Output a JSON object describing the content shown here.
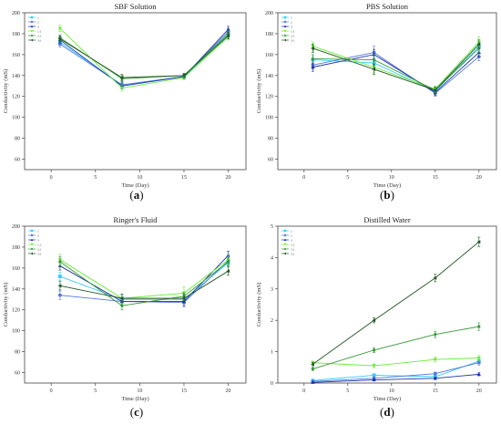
{
  "chart_data": [
    {
      "type": "line",
      "title": "SBF Solution",
      "xlabel": "Time (Day)",
      "ylabel": "Conductivity (mS)",
      "caption": "a",
      "xlim": [
        -3,
        22
      ],
      "ylim": [
        50,
        200
      ],
      "xticks": [
        0,
        5,
        10,
        15,
        20
      ],
      "yticks": [
        60,
        80,
        100,
        120,
        140,
        160,
        180,
        200
      ],
      "x": [
        1,
        8,
        15,
        20
      ],
      "legend_position": "top-left",
      "series": [
        {
          "name": "1",
          "color": "#33ccff",
          "marker": "square",
          "values": [
            172,
            131,
            139,
            179
          ],
          "err": [
            3,
            3,
            2,
            3
          ]
        },
        {
          "name": "2",
          "color": "#5577dd",
          "marker": "circle",
          "values": [
            170,
            131,
            139,
            182
          ],
          "err": [
            3,
            3,
            2,
            3
          ]
        },
        {
          "name": "3",
          "color": "#1a33aa",
          "marker": "triangle",
          "values": [
            174,
            130,
            139,
            184
          ],
          "err": [
            3,
            3,
            2,
            3
          ]
        },
        {
          "name": "1:1",
          "color": "#66ee33",
          "marker": "triangle-down",
          "values": [
            185,
            128,
            138,
            177
          ],
          "err": [
            3,
            3,
            2,
            3
          ]
        },
        {
          "name": "2:1",
          "color": "#339933",
          "marker": "diamond",
          "values": [
            176,
            137,
            140,
            180
          ],
          "err": [
            3,
            3,
            2,
            3
          ]
        },
        {
          "name": "3:1",
          "color": "#225522",
          "marker": "triangle-left",
          "values": [
            175,
            138,
            140,
            178
          ],
          "err": [
            3,
            3,
            2,
            3
          ]
        }
      ]
    },
    {
      "type": "line",
      "title": "PBS Solution",
      "xlabel": "Time (Day)",
      "ylabel": "Conductivity (mS)",
      "caption": "b",
      "xlim": [
        -3,
        22
      ],
      "ylim": [
        50,
        200
      ],
      "xticks": [
        0,
        5,
        10,
        15,
        20
      ],
      "yticks": [
        60,
        80,
        100,
        120,
        140,
        160,
        180,
        200
      ],
      "x": [
        1,
        8,
        15,
        20
      ],
      "legend_position": "top-left",
      "series": [
        {
          "name": "1",
          "color": "#33ccff",
          "marker": "square",
          "values": [
            155,
            152,
            125,
            168
          ],
          "err": [
            4,
            5,
            3,
            4
          ]
        },
        {
          "name": "2",
          "color": "#5577dd",
          "marker": "circle",
          "values": [
            150,
            162,
            123,
            158
          ],
          "err": [
            4,
            6,
            3,
            4
          ]
        },
        {
          "name": "3",
          "color": "#1a33aa",
          "marker": "triangle",
          "values": [
            148,
            160,
            124,
            162
          ],
          "err": [
            4,
            5,
            3,
            4
          ]
        },
        {
          "name": "1:1",
          "color": "#66ee33",
          "marker": "triangle-down",
          "values": [
            168,
            148,
            127,
            172
          ],
          "err": [
            4,
            5,
            3,
            5
          ]
        },
        {
          "name": "2:1",
          "color": "#339933",
          "marker": "diamond",
          "values": [
            156,
            155,
            126,
            166
          ],
          "err": [
            4,
            5,
            3,
            4
          ]
        },
        {
          "name": "3:1",
          "color": "#225522",
          "marker": "triangle-left",
          "values": [
            166,
            146,
            126,
            170
          ],
          "err": [
            4,
            5,
            3,
            4
          ]
        }
      ]
    },
    {
      "type": "line",
      "title": "Ringer's Fluid",
      "xlabel": "Time (Day)",
      "ylabel": "Conductivity (mS)",
      "caption": "c",
      "xlim": [
        -3,
        22
      ],
      "ylim": [
        50,
        200
      ],
      "xticks": [
        0,
        5,
        10,
        15,
        20
      ],
      "yticks": [
        60,
        80,
        100,
        120,
        140,
        160,
        180,
        200
      ],
      "x": [
        1,
        8,
        15,
        20
      ],
      "legend_position": "top-left",
      "series": [
        {
          "name": "1",
          "color": "#33ccff",
          "marker": "square",
          "values": [
            152,
            130,
            130,
            165
          ],
          "err": [
            4,
            4,
            4,
            4
          ]
        },
        {
          "name": "2",
          "color": "#5577dd",
          "marker": "circle",
          "values": [
            134,
            128,
            127,
            167
          ],
          "err": [
            4,
            4,
            4,
            4
          ]
        },
        {
          "name": "3",
          "color": "#1a33aa",
          "marker": "triangle",
          "values": [
            162,
            128,
            128,
            172
          ],
          "err": [
            4,
            4,
            4,
            4
          ]
        },
        {
          "name": "1:1",
          "color": "#66ee33",
          "marker": "triangle-down",
          "values": [
            168,
            131,
            136,
            168
          ],
          "err": [
            5,
            4,
            6,
            5
          ]
        },
        {
          "name": "2:1",
          "color": "#339933",
          "marker": "diamond",
          "values": [
            166,
            124,
            133,
            166
          ],
          "err": [
            5,
            4,
            4,
            4
          ]
        },
        {
          "name": "3:1",
          "color": "#225522",
          "marker": "triangle-left",
          "values": [
            143,
            131,
            131,
            157
          ],
          "err": [
            4,
            4,
            4,
            4
          ]
        }
      ]
    },
    {
      "type": "line",
      "title": "Distilled Water",
      "xlabel": "Time (Day)",
      "ylabel": "Conductivity (mS)",
      "caption": "d",
      "xlim": [
        -3,
        22
      ],
      "ylim": [
        0,
        5
      ],
      "xticks": [
        0,
        5,
        10,
        15,
        20
      ],
      "yticks": [
        0,
        1,
        2,
        3,
        4,
        5
      ],
      "x": [
        1,
        8,
        15,
        20
      ],
      "legend_position": "top-left",
      "series": [
        {
          "name": "1",
          "color": "#33ccff",
          "marker": "square",
          "values": [
            0.08,
            0.25,
            0.2,
            0.7
          ],
          "err": [
            0.03,
            0.05,
            0.05,
            0.08
          ]
        },
        {
          "name": "2",
          "color": "#5577dd",
          "marker": "circle",
          "values": [
            0.05,
            0.15,
            0.3,
            0.65
          ],
          "err": [
            0.03,
            0.05,
            0.05,
            0.08
          ]
        },
        {
          "name": "3",
          "color": "#1a33aa",
          "marker": "triangle",
          "values": [
            0.02,
            0.1,
            0.15,
            0.28
          ],
          "err": [
            0.02,
            0.03,
            0.04,
            0.05
          ]
        },
        {
          "name": "1:1",
          "color": "#66ee33",
          "marker": "triangle-down",
          "values": [
            0.65,
            0.55,
            0.75,
            0.8
          ],
          "err": [
            0.05,
            0.06,
            0.08,
            0.08
          ]
        },
        {
          "name": "2:1",
          "color": "#339933",
          "marker": "diamond",
          "values": [
            0.45,
            1.05,
            1.55,
            1.8
          ],
          "err": [
            0.05,
            0.08,
            0.1,
            0.12
          ]
        },
        {
          "name": "3:1",
          "color": "#225522",
          "marker": "triangle-left",
          "values": [
            0.6,
            2.0,
            3.35,
            4.5
          ],
          "err": [
            0.05,
            0.08,
            0.12,
            0.15
          ]
        }
      ]
    }
  ]
}
